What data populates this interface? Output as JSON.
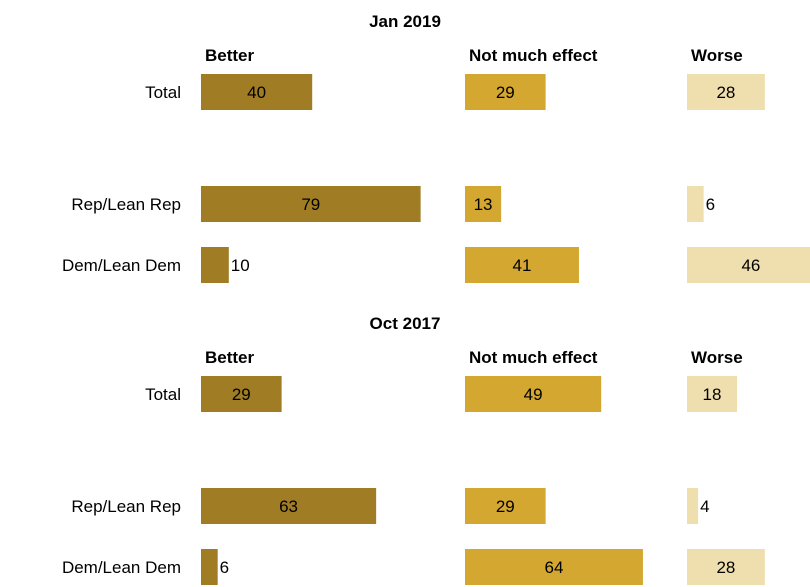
{
  "chart_data": {
    "type": "bar",
    "orientation": "horizontal",
    "layout": "small-multiples",
    "colors": {
      "Better": "#a07d24",
      "Not much effect": "#d4a731",
      "Worse": "#efdfae"
    },
    "columns": [
      "Better",
      "Not much effect",
      "Worse"
    ],
    "panels": [
      {
        "title": "Jan 2019",
        "rows": [
          {
            "label": "Total",
            "values": [
              40,
              29,
              28
            ]
          },
          {
            "label": "Rep/Lean Rep",
            "values": [
              79,
              13,
              6
            ]
          },
          {
            "label": "Dem/Lean Dem",
            "values": [
              10,
              41,
              46
            ]
          }
        ]
      },
      {
        "title": "Oct 2017",
        "rows": [
          {
            "label": "Total",
            "values": [
              29,
              49,
              18
            ]
          },
          {
            "label": "Rep/Lean Rep",
            "values": [
              63,
              29,
              4
            ]
          },
          {
            "label": "Dem/Lean Dem",
            "values": [
              6,
              64,
              28
            ]
          }
        ]
      }
    ]
  }
}
